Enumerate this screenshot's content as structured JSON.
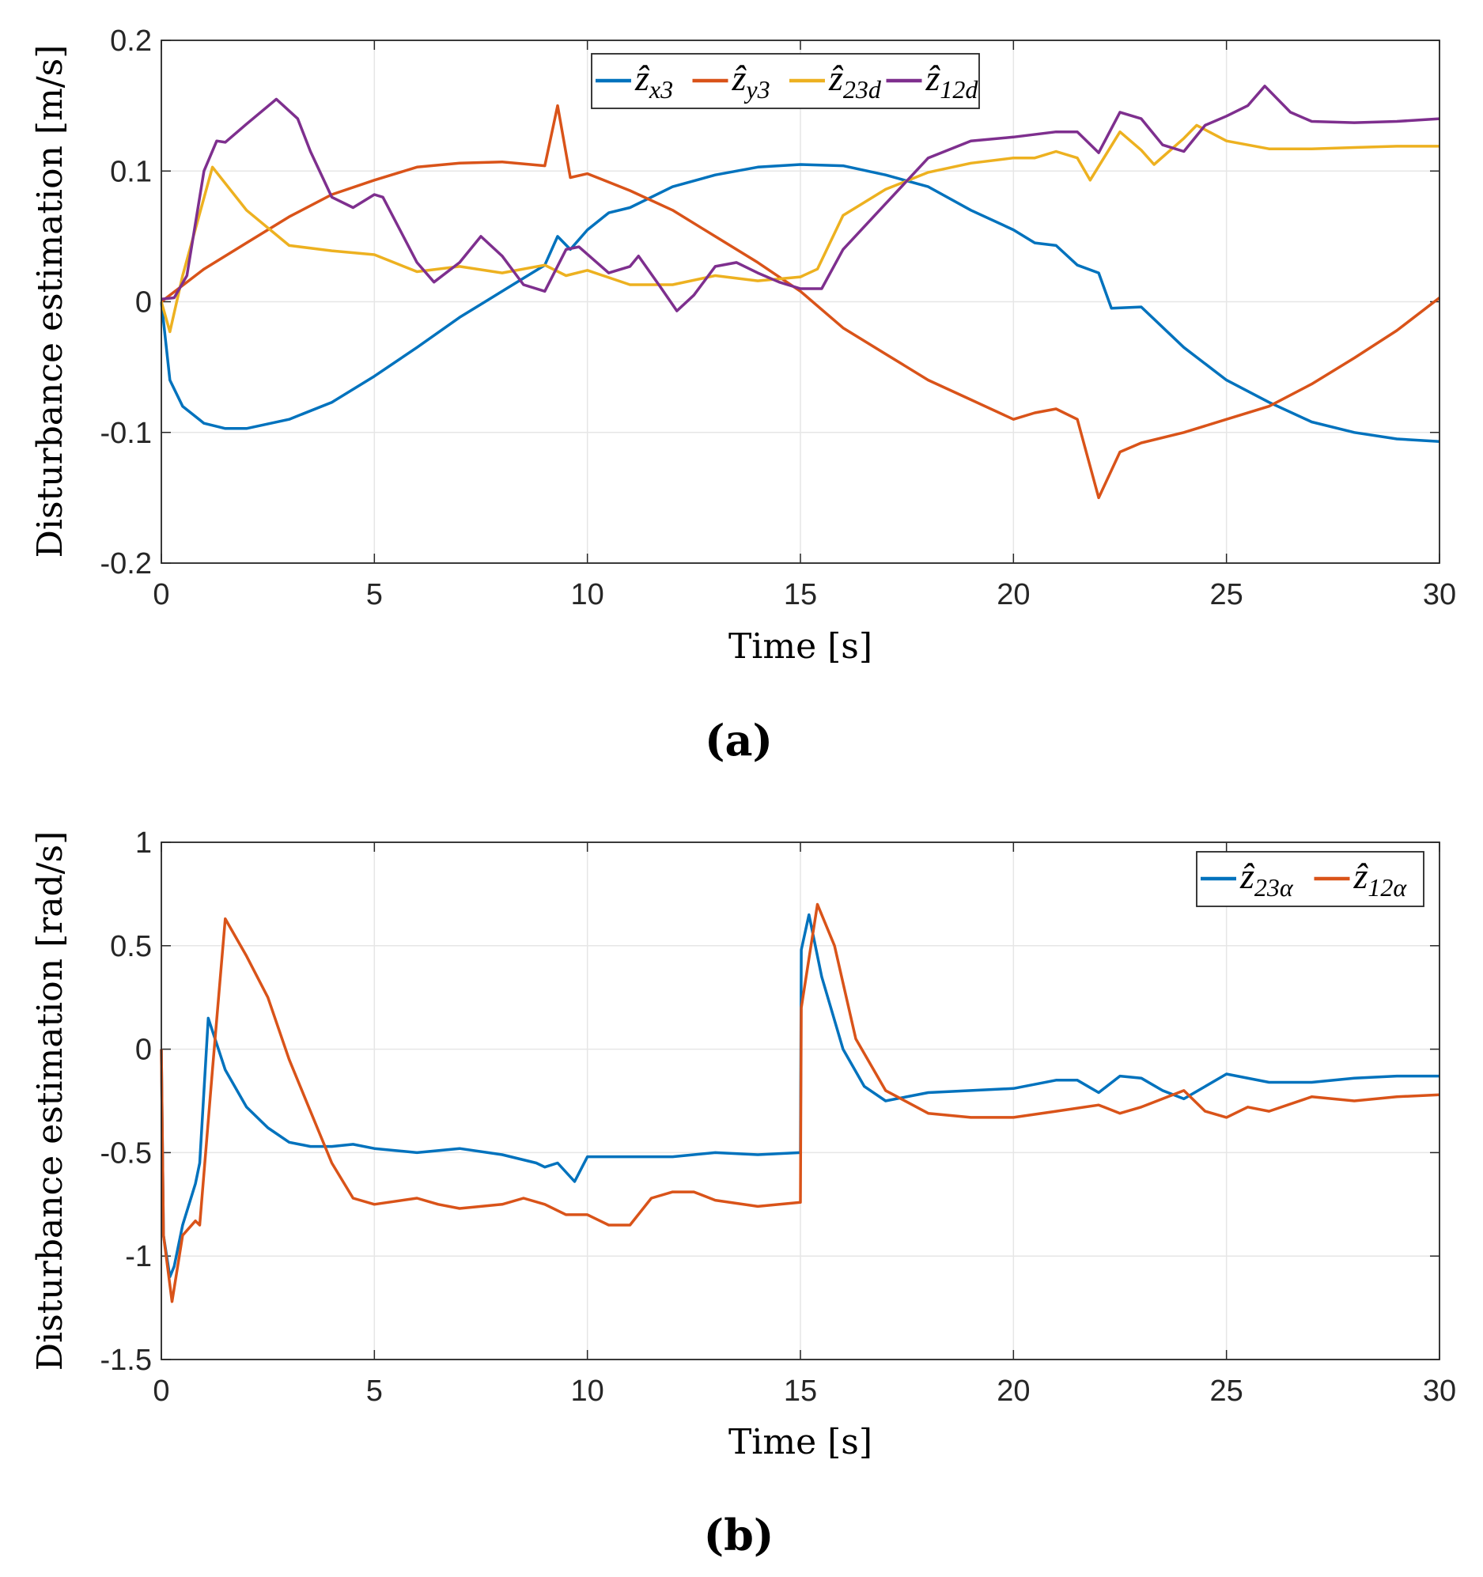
{
  "chart_data": [
    {
      "type": "line",
      "caption": "(a)",
      "xlabel": "Time [s]",
      "ylabel": "Disturbance estimation [m/s]",
      "xlim": [
        0,
        30
      ],
      "ylim": [
        -0.2,
        0.2
      ],
      "xticks": [
        "0",
        "5",
        "10",
        "15",
        "20",
        "25",
        "30"
      ],
      "yticks": [
        "-0.2",
        "-0.1",
        "0",
        "0.1",
        "0.2"
      ],
      "xtick_values": [
        0,
        5,
        10,
        15,
        20,
        25,
        30
      ],
      "ytick_values": [
        -0.2,
        -0.1,
        0,
        0.1,
        0.2
      ],
      "grid": true,
      "legend_placement": "top-center",
      "series": [
        {
          "name": "ẑx3",
          "base": "ẑ",
          "sub": "x3",
          "color": "#0072BD",
          "x": [
            0,
            0.2,
            0.5,
            1,
            1.5,
            2,
            3,
            4,
            5,
            6,
            7,
            8,
            9,
            9.3,
            9.6,
            10,
            10.5,
            11,
            12,
            13,
            14,
            15,
            16,
            17,
            18,
            19,
            20,
            20.5,
            21,
            21.5,
            22,
            22.3,
            23,
            24,
            25,
            26,
            27,
            28,
            29,
            30
          ],
          "y": [
            0,
            -0.06,
            -0.08,
            -0.093,
            -0.097,
            -0.097,
            -0.09,
            -0.077,
            -0.057,
            -0.035,
            -0.012,
            0.008,
            0.028,
            0.05,
            0.04,
            0.055,
            0.068,
            0.072,
            0.088,
            0.097,
            0.103,
            0.105,
            0.104,
            0.097,
            0.088,
            0.07,
            0.055,
            0.045,
            0.043,
            0.028,
            0.022,
            -0.005,
            -0.004,
            -0.035,
            -0.06,
            -0.077,
            -0.092,
            -0.1,
            -0.105,
            -0.107
          ]
        },
        {
          "name": "ẑy3",
          "base": "ẑ",
          "sub": "y3",
          "color": "#D95319",
          "x": [
            0,
            1,
            2,
            3,
            4,
            5,
            6,
            7,
            8,
            9,
            9.3,
            9.6,
            10,
            11,
            12,
            13,
            14,
            15,
            16,
            17,
            18,
            19,
            20,
            20.5,
            21,
            21.5,
            22,
            22.5,
            23,
            24,
            25,
            26,
            27,
            28,
            29,
            30
          ],
          "y": [
            0,
            0.025,
            0.045,
            0.065,
            0.082,
            0.093,
            0.103,
            0.106,
            0.107,
            0.104,
            0.15,
            0.095,
            0.098,
            0.085,
            0.07,
            0.05,
            0.03,
            0.008,
            -0.02,
            -0.04,
            -0.06,
            -0.075,
            -0.09,
            -0.085,
            -0.082,
            -0.09,
            -0.15,
            -0.115,
            -0.108,
            -0.1,
            -0.09,
            -0.08,
            -0.063,
            -0.043,
            -0.022,
            0.003
          ]
        },
        {
          "name": "ẑ23d",
          "base": "ẑ",
          "sub": "23d",
          "color": "#EDB120",
          "x": [
            0,
            0.2,
            0.5,
            1.2,
            2,
            3,
            4,
            5,
            6,
            7,
            8,
            9,
            9.5,
            10,
            11,
            12,
            13,
            14,
            15,
            15.4,
            16,
            17,
            18,
            19,
            20,
            20.5,
            21,
            21.5,
            21.8,
            22.5,
            23,
            23.3,
            24,
            24.3,
            25,
            26,
            27,
            28,
            29,
            30
          ],
          "y": [
            0,
            -0.023,
            0.02,
            0.103,
            0.07,
            0.043,
            0.039,
            0.036,
            0.023,
            0.027,
            0.022,
            0.028,
            0.02,
            0.024,
            0.013,
            0.013,
            0.02,
            0.016,
            0.019,
            0.025,
            0.066,
            0.086,
            0.099,
            0.106,
            0.11,
            0.11,
            0.115,
            0.11,
            0.093,
            0.13,
            0.116,
            0.105,
            0.125,
            0.135,
            0.123,
            0.117,
            0.117,
            0.118,
            0.119,
            0.119
          ]
        },
        {
          "name": "ẑ12d",
          "base": "ẑ",
          "sub": "12d",
          "color": "#7E2F8E",
          "x": [
            0,
            0.3,
            0.6,
            1,
            1.3,
            1.5,
            2,
            2.7,
            3.2,
            3.5,
            4,
            4.5,
            5,
            5.2,
            6,
            6.4,
            7,
            7.5,
            8,
            8.5,
            9,
            9.5,
            9.8,
            10.5,
            11,
            11.2,
            11.7,
            12.1,
            12.5,
            13,
            13.5,
            14,
            14.5,
            15,
            15.5,
            16,
            17,
            18,
            19,
            20,
            21,
            21.5,
            22,
            22.5,
            23,
            23.5,
            24,
            24.5,
            25,
            25.5,
            25.9,
            26.5,
            27,
            28,
            29,
            30
          ],
          "y": [
            0.002,
            0.003,
            0.02,
            0.1,
            0.123,
            0.122,
            0.136,
            0.155,
            0.14,
            0.115,
            0.08,
            0.072,
            0.082,
            0.08,
            0.03,
            0.015,
            0.03,
            0.05,
            0.035,
            0.013,
            0.008,
            0.04,
            0.042,
            0.022,
            0.027,
            0.035,
            0.012,
            -0.007,
            0.005,
            0.027,
            0.03,
            0.022,
            0.015,
            0.01,
            0.01,
            0.04,
            0.075,
            0.11,
            0.123,
            0.126,
            0.13,
            0.13,
            0.114,
            0.145,
            0.14,
            0.12,
            0.115,
            0.135,
            0.142,
            0.15,
            0.165,
            0.145,
            0.138,
            0.137,
            0.138,
            0.14
          ]
        }
      ]
    },
    {
      "type": "line",
      "caption": "(b)",
      "xlabel": "Time [s]",
      "ylabel": "Disturbance estimation [rad/s]",
      "xlim": [
        0,
        30
      ],
      "ylim": [
        -1.5,
        1
      ],
      "xticks": [
        "0",
        "5",
        "10",
        "15",
        "20",
        "25",
        "30"
      ],
      "yticks": [
        "-1.5",
        "-1",
        "-0.5",
        "0",
        "0.5",
        "1"
      ],
      "xtick_values": [
        0,
        5,
        10,
        15,
        20,
        25,
        30
      ],
      "ytick_values": [
        -1.5,
        -1,
        -0.5,
        0,
        0.5,
        1
      ],
      "grid": true,
      "legend_placement": "top-right",
      "series": [
        {
          "name": "ẑ23α",
          "base": "ẑ",
          "sub": "23α",
          "color": "#0072BD",
          "x": [
            0,
            0.05,
            0.2,
            0.3,
            0.5,
            0.8,
            0.9,
            1.1,
            1.5,
            2,
            2.5,
            3,
            3.5,
            4,
            4.5,
            5,
            6,
            7,
            8,
            8.8,
            9,
            9.3,
            9.7,
            10,
            11,
            12,
            13,
            14,
            15,
            15.02,
            15.2,
            15.5,
            16,
            16.5,
            17,
            18,
            19,
            20,
            21,
            21.5,
            22,
            22.5,
            23,
            23.5,
            24,
            24.5,
            25,
            26,
            27,
            28,
            29,
            30
          ],
          "y": [
            0,
            -0.9,
            -1.1,
            -1.05,
            -0.85,
            -0.65,
            -0.55,
            0.15,
            -0.1,
            -0.28,
            -0.38,
            -0.45,
            -0.47,
            -0.47,
            -0.46,
            -0.48,
            -0.5,
            -0.48,
            -0.51,
            -0.55,
            -0.57,
            -0.55,
            -0.64,
            -0.52,
            -0.52,
            -0.52,
            -0.5,
            -0.51,
            -0.5,
            0.48,
            0.65,
            0.35,
            0.0,
            -0.18,
            -0.25,
            -0.21,
            -0.2,
            -0.19,
            -0.15,
            -0.15,
            -0.21,
            -0.13,
            -0.14,
            -0.2,
            -0.24,
            -0.18,
            -0.12,
            -0.16,
            -0.16,
            -0.14,
            -0.13,
            -0.13
          ]
        },
        {
          "name": "ẑ12α",
          "base": "ẑ",
          "sub": "12α",
          "color": "#D95319",
          "x": [
            0,
            0.05,
            0.25,
            0.5,
            0.8,
            0.9,
            1.2,
            1.5,
            2,
            2.5,
            3,
            3.5,
            4,
            4.5,
            5,
            6,
            6.5,
            7,
            8,
            8.5,
            9,
            9.5,
            10,
            10.5,
            11,
            11.5,
            12,
            12.5,
            13,
            14,
            15,
            15.02,
            15.4,
            15.8,
            16.3,
            17,
            18,
            19,
            20,
            21,
            22,
            22.5,
            23,
            24,
            24.5,
            25,
            25.5,
            26,
            27,
            28,
            29,
            30
          ],
          "y": [
            0,
            -0.9,
            -1.22,
            -0.9,
            -0.83,
            -0.85,
            -0.1,
            0.63,
            0.45,
            0.25,
            -0.05,
            -0.3,
            -0.55,
            -0.72,
            -0.75,
            -0.72,
            -0.75,
            -0.77,
            -0.75,
            -0.72,
            -0.75,
            -0.8,
            -0.8,
            -0.85,
            -0.85,
            -0.72,
            -0.69,
            -0.69,
            -0.73,
            -0.76,
            -0.74,
            0.2,
            0.7,
            0.5,
            0.05,
            -0.2,
            -0.31,
            -0.33,
            -0.33,
            -0.3,
            -0.27,
            -0.31,
            -0.28,
            -0.2,
            -0.3,
            -0.33,
            -0.28,
            -0.3,
            -0.23,
            -0.25,
            -0.23,
            -0.22
          ]
        }
      ]
    }
  ]
}
